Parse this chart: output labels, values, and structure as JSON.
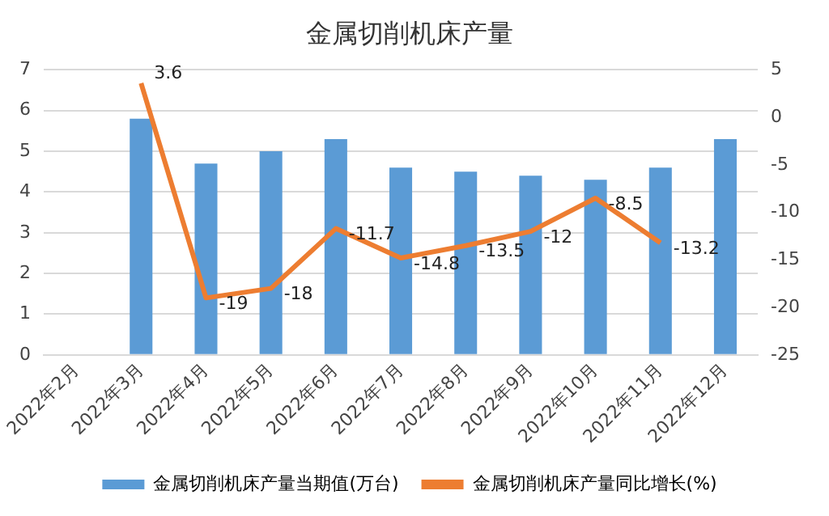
{
  "chart_data": {
    "type": "bar",
    "title": "金属切削机床产量",
    "categories": [
      "2022年2月",
      "2022年3月",
      "2022年4月",
      "2022年5月",
      "2022年6月",
      "2022年7月",
      "2022年8月",
      "2022年9月",
      "2022年10月",
      "2022年11月",
      "2022年12月"
    ],
    "series": [
      {
        "name": "金属切削机床产量当期值(万台)",
        "color": "#5b9bd5",
        "values": [
          null,
          5.8,
          4.7,
          5.0,
          5.3,
          4.6,
          4.5,
          4.4,
          4.3,
          4.6,
          5.3
        ]
      },
      {
        "name": "金属切削机床产量同比增长(%)",
        "type": "line",
        "axis": "y2",
        "color": "#ed7d31",
        "values": [
          null,
          3.6,
          -19,
          -18,
          -11.7,
          -14.8,
          -13.5,
          -12,
          -8.5,
          -13.2,
          null
        ],
        "value_labels": [
          null,
          "3.6",
          "-19",
          "-18",
          "-11.7",
          "-14.8",
          "-13.5",
          "-12",
          "-8.5",
          "-13.2",
          null
        ]
      }
    ],
    "ylim": [
      0,
      7
    ],
    "yticks": [
      0,
      1,
      2,
      3,
      4,
      5,
      6,
      7
    ],
    "y2lim": [
      -25,
      5
    ],
    "y2ticks": [
      -25,
      -20,
      -15,
      -10,
      -5,
      0,
      5
    ],
    "grid": "y",
    "legend": "bottom",
    "marker": "none"
  }
}
